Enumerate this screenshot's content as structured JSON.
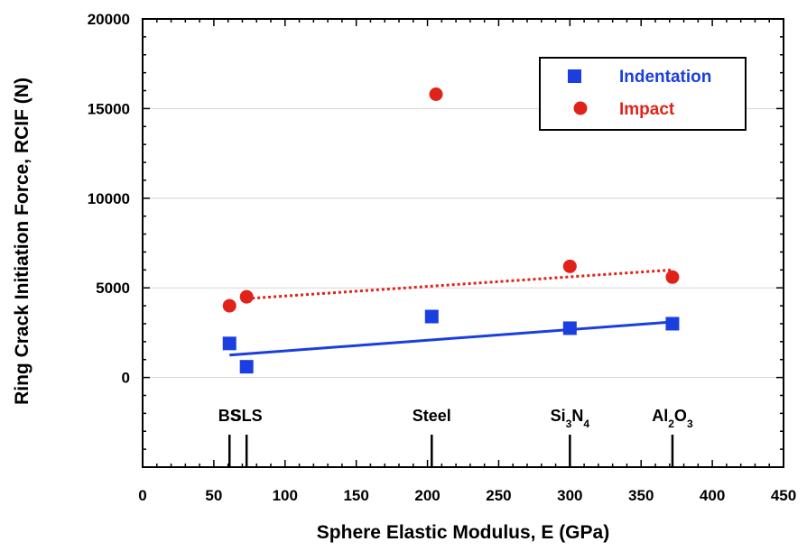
{
  "chart_data": {
    "type": "scatter",
    "title": "",
    "xlabel": "Sphere Elastic Modulus, E  (GPa)",
    "ylabel": "Ring Crack Initiation Force, RCIF  (N)",
    "xlim": [
      0,
      450
    ],
    "ylim": [
      -5000,
      20000
    ],
    "x_ticks": [
      "0",
      "50",
      "100",
      "150",
      "200",
      "250",
      "300",
      "350",
      "400",
      "450"
    ],
    "y_ticks": [
      "0",
      "5000",
      "10000",
      "15000",
      "20000"
    ],
    "grid": "horizontal",
    "legend_position": "top-right",
    "series": [
      {
        "name": "Indentation",
        "marker": "square",
        "color": "#1a3ee0",
        "x": [
          61,
          73,
          203,
          300,
          372
        ],
        "y": [
          1900,
          600,
          3400,
          2750,
          3000
        ],
        "fit": {
          "x": [
            61,
            372
          ],
          "y": [
            1250,
            3100
          ],
          "style": "solid"
        }
      },
      {
        "name": "Impact",
        "marker": "circle",
        "color": "#e0231a",
        "x": [
          61,
          73,
          206,
          300,
          372
        ],
        "y": [
          4000,
          4500,
          15800,
          6200,
          5600
        ],
        "fit": {
          "x": [
            73,
            372
          ],
          "y": [
            4400,
            6000
          ],
          "style": "dotted"
        }
      }
    ],
    "annotations": [
      {
        "text": "BS",
        "x": 61
      },
      {
        "text": "SLS",
        "x": 73
      },
      {
        "text": "Steel",
        "x": 203
      },
      {
        "parts": [
          [
            "Si",
            ""
          ],
          [
            "3",
            "sub"
          ],
          [
            "N",
            ""
          ],
          [
            "4",
            "sub"
          ]
        ],
        "x": 300
      },
      {
        "parts": [
          [
            "Al",
            ""
          ],
          [
            "2",
            "sub"
          ],
          [
            "O",
            ""
          ],
          [
            "3",
            "sub"
          ]
        ],
        "x": 372
      }
    ]
  }
}
